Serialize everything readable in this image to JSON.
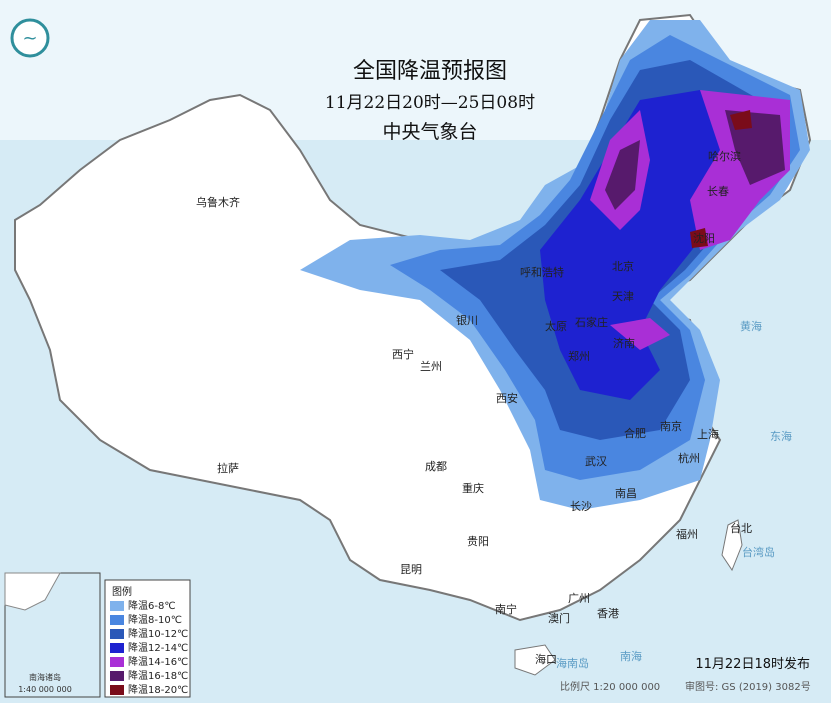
{
  "header": {
    "title": "全国降温预报图",
    "period": "11月22日20时—25日08时",
    "issuer": "中央气象台"
  },
  "legend": {
    "title": "图例",
    "items": [
      {
        "label": "降温6-8℃",
        "color": "#7fb2ec"
      },
      {
        "label": "降温8-10℃",
        "color": "#4a86e0"
      },
      {
        "label": "降温10-12℃",
        "color": "#2a58b8"
      },
      {
        "label": "降温12-14℃",
        "color": "#1e22d0"
      },
      {
        "label": "降温14-16℃",
        "color": "#a92fd6"
      },
      {
        "label": "降温16-18℃",
        "color": "#571a6c"
      },
      {
        "label": "降温18-20℃",
        "color": "#7a0c1a"
      }
    ]
  },
  "cities": [
    "乌鲁木齐",
    "西宁",
    "兰州",
    "银川",
    "呼和浩特",
    "北京",
    "天津",
    "石家庄",
    "太原",
    "济南",
    "郑州",
    "西安",
    "合肥",
    "南京",
    "上海",
    "杭州",
    "武汉",
    "成都",
    "重庆",
    "长沙",
    "南昌",
    "贵阳",
    "昆明",
    "拉萨",
    "南宁",
    "广州",
    "香港",
    "澳门",
    "福州",
    "台北",
    "海口",
    "沈阳",
    "长春",
    "哈尔滨"
  ],
  "seas": [
    "黄海",
    "东海",
    "南海",
    "台湾岛",
    "海南岛"
  ],
  "inset": {
    "title": "南海诸岛",
    "scale": "1:40 000 000"
  },
  "footer": {
    "issued": "11月22日18时发布",
    "scale": "比例尺 1:20 000 000",
    "approval": "审图号: GS (2019) 3082号"
  }
}
